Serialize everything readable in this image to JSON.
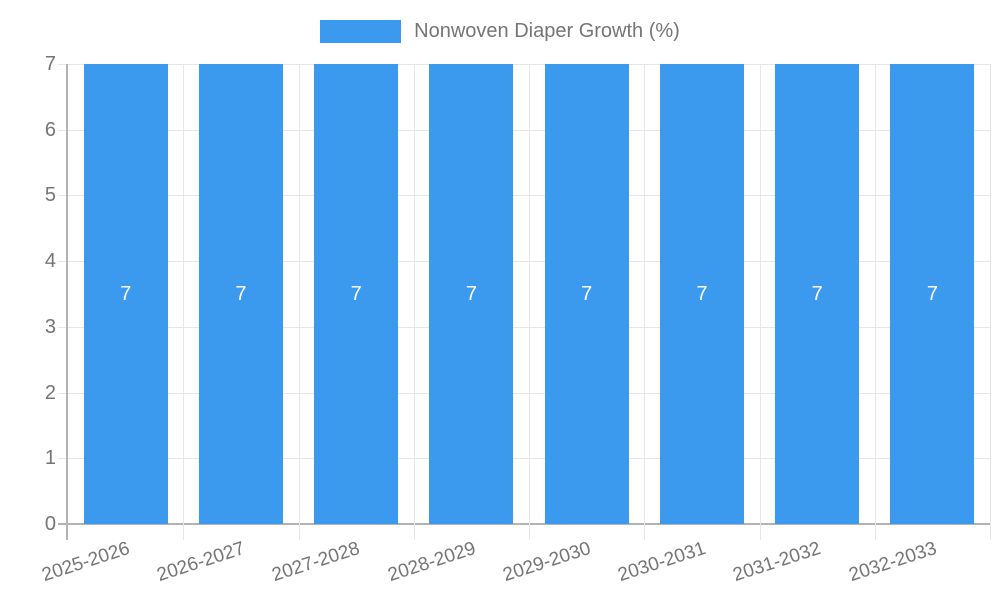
{
  "chart_data": {
    "type": "bar",
    "title": "",
    "legend_label": "Nonwoven Diaper Growth (%)",
    "legend_position": "top",
    "categories": [
      "2025-2026",
      "2026-2027",
      "2027-2028",
      "2028-2029",
      "2029-2030",
      "2030-2031",
      "2031-2032",
      "2032-2033"
    ],
    "series": [
      {
        "name": "Nonwoven Diaper Growth (%)",
        "values": [
          7,
          7,
          7,
          7,
          7,
          7,
          7,
          7
        ]
      }
    ],
    "bar_value_labels": [
      "7",
      "7",
      "7",
      "7",
      "7",
      "7",
      "7",
      "7"
    ],
    "xlabel": "",
    "ylabel": "",
    "ylim": [
      0,
      7
    ],
    "y_ticks": [
      "0",
      "1",
      "2",
      "3",
      "4",
      "5",
      "6",
      "7"
    ],
    "grid": true
  },
  "colors": {
    "bar": "#3b99ee",
    "axis_text": "#757575",
    "grid_line": "#e6e6e6",
    "axis_line": "#b3b3b3",
    "bar_label": "#ffffff",
    "background": "#ffffff"
  }
}
